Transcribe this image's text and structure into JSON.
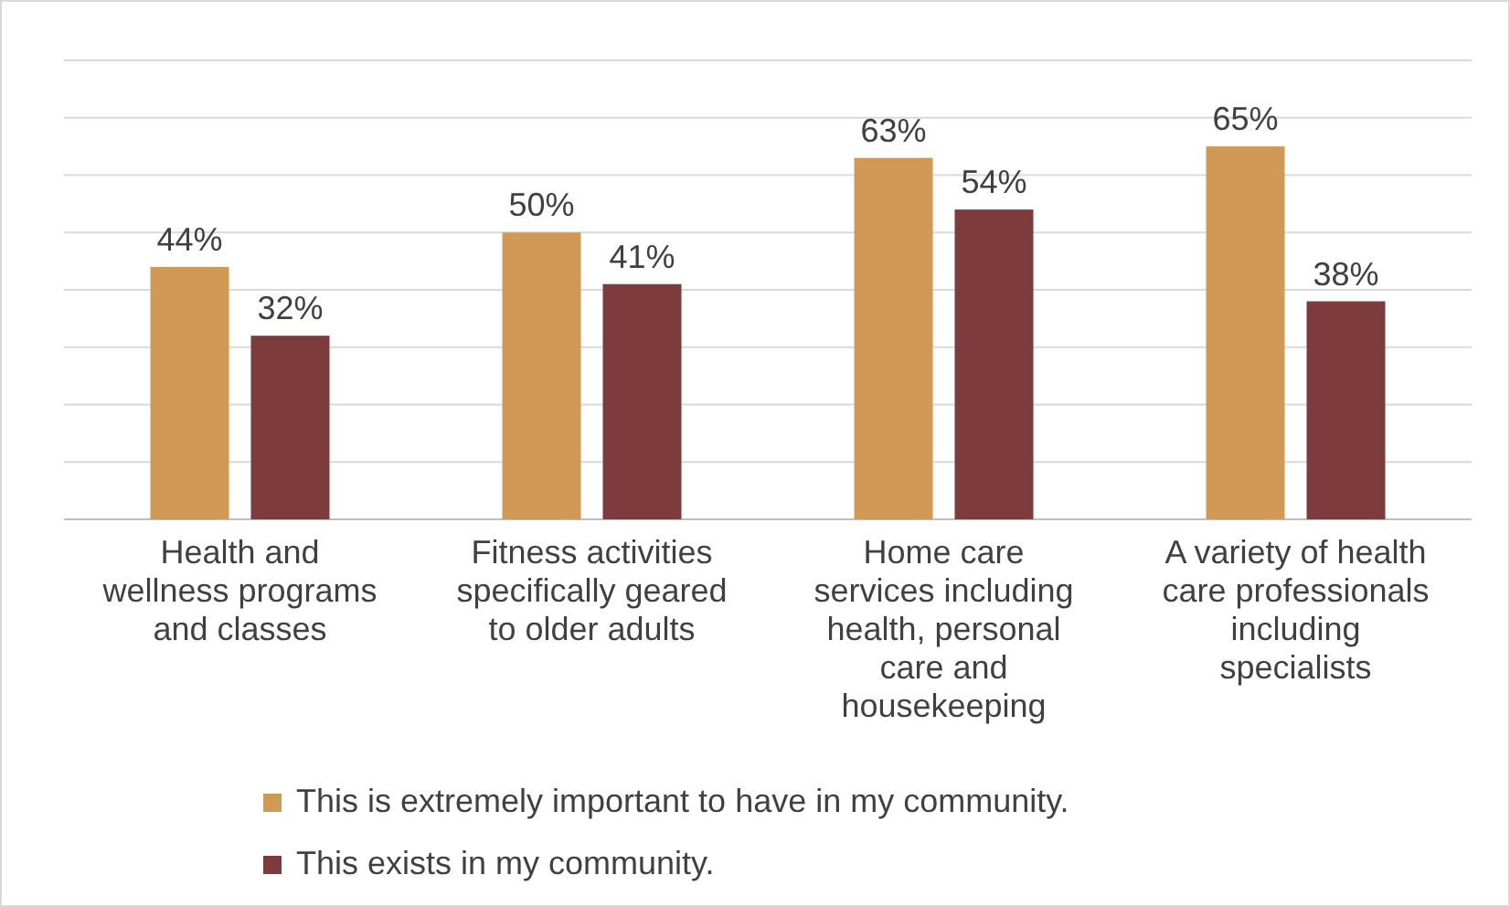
{
  "chart_data": {
    "type": "bar",
    "categories": [
      "Health and wellness programs and classes",
      "Fitness activities specifically geared to older adults",
      "Home care services including health, personal care and housekeeping",
      "A variety of health care professionals including specialists"
    ],
    "series": [
      {
        "name": "This is extremely important to have in my community.",
        "color": "#d09a56",
        "values": [
          44,
          50,
          63,
          65
        ],
        "value_labels": [
          "44%",
          "50%",
          "63%",
          "65%"
        ]
      },
      {
        "name": "This exists in my community.",
        "color": "#7d3b3c",
        "values": [
          32,
          41,
          54,
          38
        ],
        "value_labels": [
          "32%",
          "41%",
          "54%",
          "38%"
        ]
      }
    ],
    "grid": "y",
    "tick_labels": "x",
    "legend": "bottom"
  }
}
